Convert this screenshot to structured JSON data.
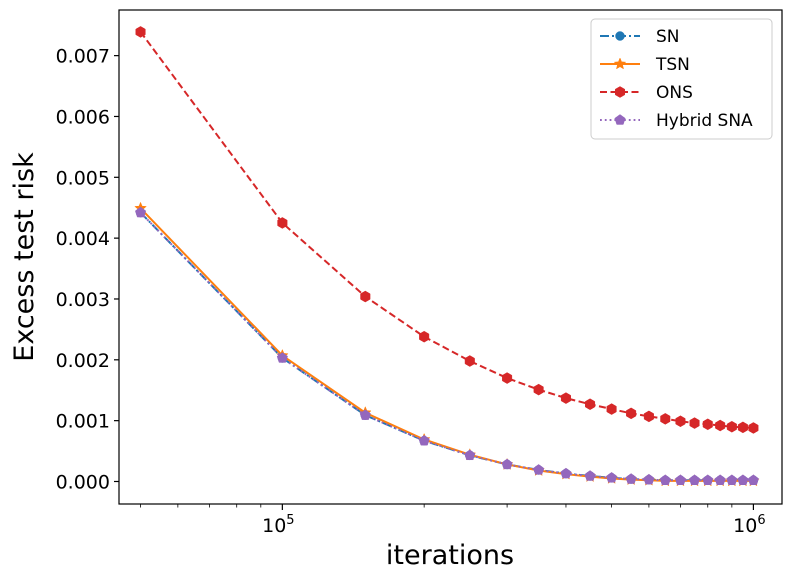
{
  "chart_data": {
    "type": "line",
    "xscale": "log",
    "xlabel": "iterations",
    "ylabel": "Excess test risk",
    "xlim": [
      45000,
      1150000
    ],
    "ylim": [
      -0.00037,
      0.00775
    ],
    "x": [
      50000,
      100000,
      150000,
      200000,
      250000,
      300000,
      350000,
      400000,
      450000,
      500000,
      550000,
      600000,
      650000,
      700000,
      750000,
      800000,
      850000,
      900000,
      950000,
      1000000
    ],
    "yticks": [
      0.0,
      0.001,
      0.002,
      0.003,
      0.004,
      0.005,
      0.006,
      0.007
    ],
    "ytick_labels": [
      "0.000",
      "0.001",
      "0.002",
      "0.003",
      "0.004",
      "0.005",
      "0.006",
      "0.007"
    ],
    "xticks": [
      {
        "value": 100000,
        "base": "10",
        "exp": "5"
      },
      {
        "value": 1000000,
        "base": "10",
        "exp": "6"
      }
    ],
    "legend_position": "top-right",
    "grid": false,
    "series": [
      {
        "name": "SN",
        "color": "#1f77b4",
        "marker": "circle",
        "linestyle": "dashdot",
        "values": [
          0.00442,
          0.00203,
          0.00109,
          0.00067,
          0.00043,
          0.00028,
          0.00019,
          0.00013,
          9e-05,
          6e-05,
          4e-05,
          3e-05,
          2e-05,
          2e-05,
          2e-05,
          2e-05,
          2e-05,
          2e-05,
          2e-05,
          2e-05
        ]
      },
      {
        "name": "TSN",
        "color": "#ff7f0e",
        "marker": "star",
        "linestyle": "solid",
        "values": [
          0.00449,
          0.00207,
          0.00113,
          0.00069,
          0.00044,
          0.00028,
          0.00018,
          0.00012,
          8e-05,
          5e-05,
          3e-05,
          2e-05,
          1e-05,
          1e-05,
          1e-05,
          1e-05,
          1e-05,
          1e-05,
          1e-05,
          1e-05
        ]
      },
      {
        "name": "ONS",
        "color": "#d62728",
        "marker": "hexagon",
        "linestyle": "dashed",
        "values": [
          0.00739,
          0.00425,
          0.00304,
          0.00238,
          0.00198,
          0.0017,
          0.00151,
          0.00137,
          0.00127,
          0.00119,
          0.00112,
          0.00107,
          0.00103,
          0.00099,
          0.00096,
          0.00094,
          0.00092,
          0.0009,
          0.00089,
          0.00088
        ]
      },
      {
        "name": "Hybrid SNA",
        "color": "#9467bd",
        "marker": "pentagon",
        "linestyle": "dotted",
        "values": [
          0.00442,
          0.00203,
          0.00109,
          0.00067,
          0.00043,
          0.00028,
          0.00019,
          0.00013,
          9e-05,
          6e-05,
          4e-05,
          3e-05,
          2e-05,
          2e-05,
          2e-05,
          2e-05,
          2e-05,
          2e-05,
          2e-05,
          2e-05
        ]
      }
    ]
  }
}
